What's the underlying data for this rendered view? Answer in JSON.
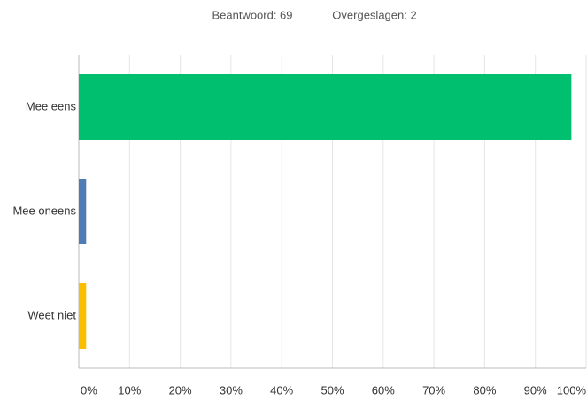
{
  "chart_data": {
    "type": "hbar",
    "subtitle": [
      "Beantwoord: 69",
      "Overgeslagen: 2"
    ],
    "categories": [
      "Mee eens",
      "Mee oneens",
      "Weet niet"
    ],
    "values": [
      97.1,
      1.45,
      1.45
    ],
    "colors": [
      "#00bf6f",
      "#507cb6",
      "#f9be00"
    ],
    "xlim": [
      0,
      100
    ],
    "xticks": [
      {
        "value": 0,
        "label": "0%"
      },
      {
        "value": 10,
        "label": "10%"
      },
      {
        "value": 20,
        "label": "20%"
      },
      {
        "value": 30,
        "label": "30%"
      },
      {
        "value": 40,
        "label": "40%"
      },
      {
        "value": 50,
        "label": "50%"
      },
      {
        "value": 60,
        "label": "60%"
      },
      {
        "value": 70,
        "label": "70%"
      },
      {
        "value": 80,
        "label": "80%"
      },
      {
        "value": 90,
        "label": "90%"
      },
      {
        "value": 100,
        "label": "100%"
      }
    ],
    "grid": true
  }
}
